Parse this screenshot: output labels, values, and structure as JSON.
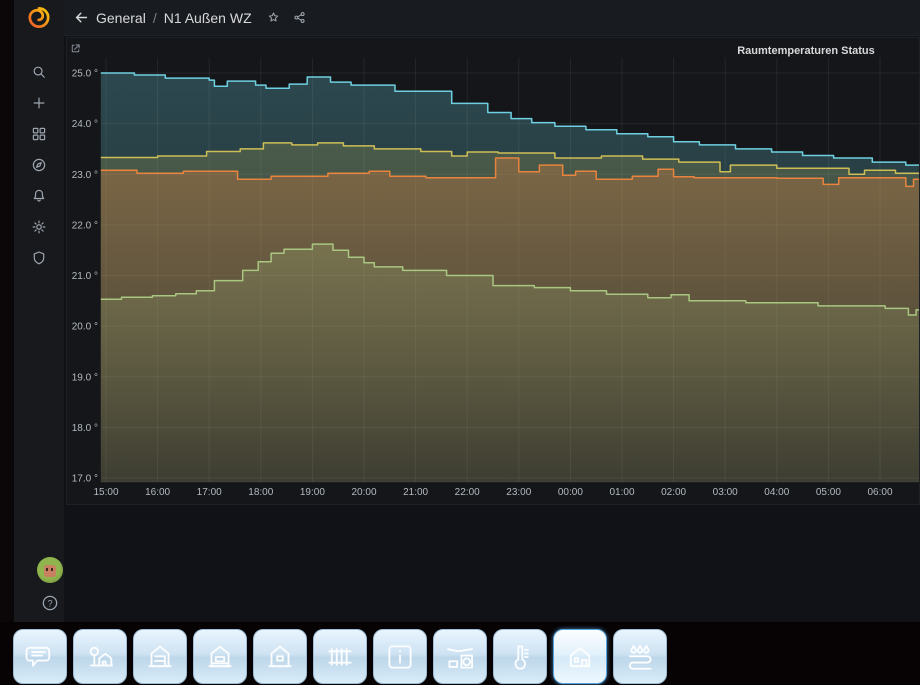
{
  "topnav": {
    "breadcrumb_section": "General",
    "breadcrumb_separator": "/",
    "breadcrumb_title": "N1 Außen WZ",
    "icons": [
      "back-arrow-icon",
      "star-icon",
      "share-icon"
    ]
  },
  "sidebar": {
    "logo": "grafana-logo",
    "items": [
      {
        "icon": "search-icon"
      },
      {
        "icon": "plus-icon"
      },
      {
        "icon": "dashboards-grid-icon"
      },
      {
        "icon": "explore-compass-icon"
      },
      {
        "icon": "alerting-bell-icon"
      },
      {
        "icon": "configuration-gear-icon"
      },
      {
        "icon": "admin-shield-icon"
      }
    ],
    "bottom": [
      {
        "icon": "user-avatar"
      },
      {
        "icon": "help-icon",
        "glyph": "?"
      }
    ]
  },
  "panel": {
    "title": "Raumtemperaturen Status",
    "corner_icon": "panel-links-icon"
  },
  "chart_data": {
    "type": "area",
    "title": "Raumtemperaturen Status",
    "x_axis": "time",
    "x_ticks": [
      "15:00",
      "16:00",
      "17:00",
      "18:00",
      "19:00",
      "20:00",
      "21:00",
      "22:00",
      "23:00",
      "00:00",
      "01:00",
      "02:00",
      "03:00",
      "04:00",
      "05:00",
      "06:00"
    ],
    "x_tick_hours_after_start": [
      0,
      1,
      2,
      3,
      4,
      5,
      6,
      7,
      8,
      9,
      10,
      11,
      12,
      13,
      14,
      15
    ],
    "xlim_hours_after_start": [
      -0.1,
      15.85
    ],
    "y_ticks": [
      "25.0 °",
      "24.0 °",
      "23.0 °",
      "22.0 °",
      "21.0 °",
      "20.0 °",
      "19.0 °",
      "18.0 °",
      "17.0 °"
    ],
    "y_tick_values": [
      25,
      24,
      23,
      22,
      21,
      20,
      19,
      18,
      17
    ],
    "ylim": [
      17,
      25.45
    ],
    "grid": true,
    "legend_position": "none",
    "series": [
      {
        "name": "series-blue",
        "color": "#6ED0E0",
        "fill_opacity": 0.27,
        "points": [
          [
            0,
            25.0
          ],
          [
            0.55,
            24.96
          ],
          [
            1.15,
            24.9
          ],
          [
            2.0,
            24.86
          ],
          [
            2.1,
            24.74
          ],
          [
            2.35,
            24.84
          ],
          [
            2.9,
            24.76
          ],
          [
            3.1,
            24.7
          ],
          [
            3.55,
            24.78
          ],
          [
            3.9,
            24.92
          ],
          [
            4.35,
            24.82
          ],
          [
            4.75,
            24.76
          ],
          [
            5.6,
            24.64
          ],
          [
            6.7,
            24.4
          ],
          [
            7.4,
            24.22
          ],
          [
            7.85,
            24.1
          ],
          [
            8.25,
            24.02
          ],
          [
            8.7,
            23.95
          ],
          [
            9.3,
            23.88
          ],
          [
            9.9,
            23.8
          ],
          [
            10.5,
            23.74
          ],
          [
            11.0,
            23.64
          ],
          [
            11.5,
            23.58
          ],
          [
            12.2,
            23.5
          ],
          [
            12.9,
            23.44
          ],
          [
            13.5,
            23.37
          ],
          [
            14.1,
            23.32
          ],
          [
            14.85,
            23.24
          ],
          [
            15.5,
            23.18
          ]
        ]
      },
      {
        "name": "series-yellow",
        "color": "#CDBE56",
        "fill_opacity": 0.2,
        "points": [
          [
            0,
            23.33
          ],
          [
            1.0,
            23.36
          ],
          [
            1.95,
            23.45
          ],
          [
            2.6,
            23.5
          ],
          [
            3.05,
            23.62
          ],
          [
            3.6,
            23.58
          ],
          [
            4.1,
            23.62
          ],
          [
            4.6,
            23.56
          ],
          [
            5.2,
            23.5
          ],
          [
            6.1,
            23.45
          ],
          [
            6.7,
            23.36
          ],
          [
            7.0,
            23.44
          ],
          [
            7.6,
            23.42
          ],
          [
            8.7,
            23.32
          ],
          [
            9.6,
            23.36
          ],
          [
            10.4,
            23.3
          ],
          [
            11.1,
            23.24
          ],
          [
            11.9,
            23.05
          ],
          [
            12.1,
            23.18
          ],
          [
            13.0,
            23.12
          ],
          [
            14.4,
            23.0
          ],
          [
            14.7,
            23.08
          ],
          [
            15.3,
            23.02
          ]
        ]
      },
      {
        "name": "series-orange",
        "color": "#E8843D",
        "fill_opacity": 0.32,
        "points": [
          [
            0,
            23.08
          ],
          [
            0.6,
            23.02
          ],
          [
            1.5,
            23.06
          ],
          [
            2.55,
            22.9
          ],
          [
            3.2,
            22.96
          ],
          [
            4.3,
            23.02
          ],
          [
            5.1,
            23.06
          ],
          [
            5.5,
            22.96
          ],
          [
            6.2,
            22.93
          ],
          [
            7.55,
            23.32
          ],
          [
            8.0,
            23.05
          ],
          [
            8.4,
            23.18
          ],
          [
            8.85,
            22.98
          ],
          [
            9.1,
            23.06
          ],
          [
            9.5,
            22.9
          ],
          [
            10.2,
            22.96
          ],
          [
            10.7,
            23.1
          ],
          [
            11.0,
            22.95
          ],
          [
            11.4,
            22.93
          ],
          [
            13.0,
            22.92
          ],
          [
            13.9,
            22.8
          ],
          [
            14.2,
            22.93
          ],
          [
            15.5,
            22.76
          ],
          [
            15.65,
            22.9
          ]
        ]
      },
      {
        "name": "series-green",
        "color": "#A9C781",
        "fill_opacity": 0.2,
        "points": [
          [
            0,
            20.53
          ],
          [
            0.3,
            20.57
          ],
          [
            0.9,
            20.6
          ],
          [
            1.35,
            20.64
          ],
          [
            1.75,
            20.7
          ],
          [
            2.1,
            20.9
          ],
          [
            2.65,
            21.1
          ],
          [
            2.95,
            21.27
          ],
          [
            3.2,
            21.44
          ],
          [
            3.45,
            21.52
          ],
          [
            4.0,
            21.62
          ],
          [
            4.4,
            21.5
          ],
          [
            4.7,
            21.36
          ],
          [
            5.0,
            21.25
          ],
          [
            5.2,
            21.17
          ],
          [
            5.75,
            21.1
          ],
          [
            6.6,
            21.0
          ],
          [
            7.5,
            20.8
          ],
          [
            8.3,
            20.76
          ],
          [
            9.0,
            20.7
          ],
          [
            9.7,
            20.63
          ],
          [
            10.5,
            20.56
          ],
          [
            10.95,
            20.62
          ],
          [
            11.3,
            20.5
          ],
          [
            12.4,
            20.46
          ],
          [
            13.8,
            20.4
          ],
          [
            15.1,
            20.35
          ],
          [
            15.55,
            20.22
          ],
          [
            15.7,
            20.32
          ]
        ]
      }
    ]
  },
  "taskbar": {
    "items": [
      {
        "icon": "chat-bubble-icon",
        "active": false
      },
      {
        "icon": "garden-house-icon",
        "active": false
      },
      {
        "icon": "house-floor1-icon",
        "active": false
      },
      {
        "icon": "house-floor2-icon",
        "active": false
      },
      {
        "icon": "house-window-icon",
        "active": false
      },
      {
        "icon": "radiator-icon",
        "active": false
      },
      {
        "icon": "info-icon",
        "active": false
      },
      {
        "icon": "laundry-icon",
        "active": false
      },
      {
        "icon": "thermometer-icon",
        "active": false
      },
      {
        "icon": "house-door-icon",
        "active": true
      },
      {
        "icon": "floor-heating-icon",
        "active": false
      }
    ]
  },
  "colors": {
    "panel_bg": "#141619",
    "content_bg": "#111217",
    "nav_bg": "#181b1f",
    "sidebar_bg": "#17191c",
    "taskbar_bg": "#070304",
    "grid": "rgba(255,255,255,0.07)",
    "axis_text": "#b4bac0",
    "accent_blue": "#6ED0E0",
    "accent_yellow": "#CDBE56",
    "accent_orange": "#E8843D",
    "accent_green": "#A9C781"
  }
}
